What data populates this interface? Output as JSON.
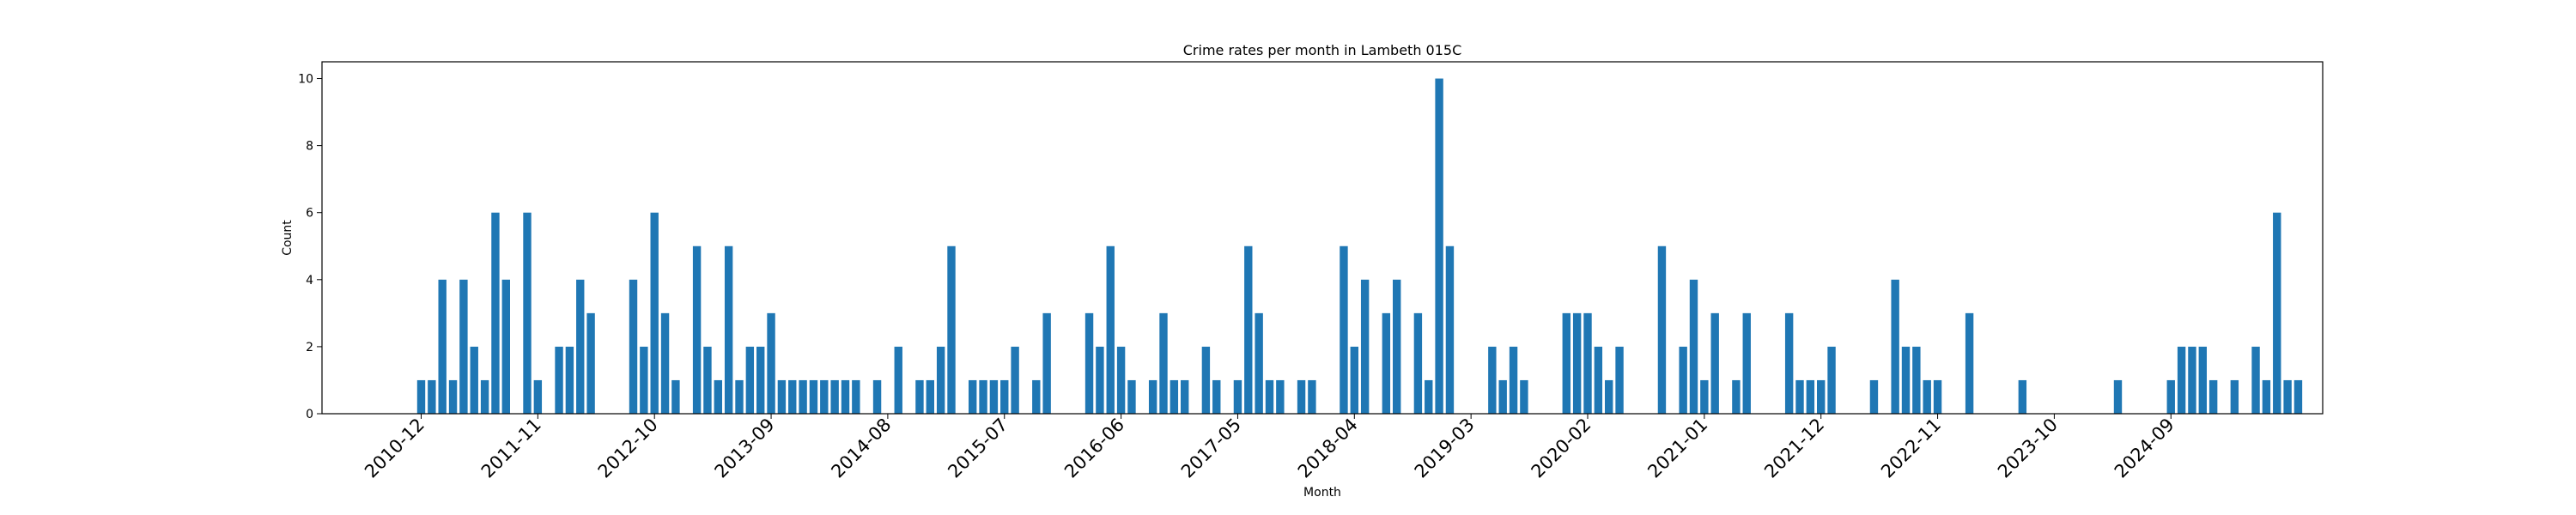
{
  "chart_data": {
    "type": "bar",
    "title": "Crime rates per month in Lambeth 015C",
    "xlabel": "Month",
    "ylabel": "Count",
    "ylim": [
      0,
      10.5
    ],
    "y_ticks": [
      0,
      2,
      4,
      6,
      8,
      10
    ],
    "x_tick_labels": [
      "2010-12",
      "2011-11",
      "2012-10",
      "2013-09",
      "2014-08",
      "2015-07",
      "2016-06",
      "2017-05",
      "2018-04",
      "2019-03",
      "2020-02",
      "2021-01",
      "2021-12",
      "2022-11",
      "2023-10",
      "2024-09"
    ],
    "start_month": "2010-12",
    "bar_color": "#1f77b4",
    "values": [
      1,
      1,
      4,
      1,
      4,
      2,
      1,
      6,
      4,
      0,
      6,
      1,
      0,
      2,
      2,
      4,
      3,
      0,
      0,
      0,
      4,
      2,
      6,
      3,
      1,
      0,
      5,
      2,
      1,
      5,
      1,
      2,
      2,
      3,
      1,
      1,
      1,
      1,
      1,
      1,
      1,
      1,
      0,
      1,
      0,
      2,
      0,
      1,
      1,
      2,
      5,
      0,
      1,
      1,
      1,
      1,
      2,
      0,
      1,
      3,
      0,
      0,
      0,
      3,
      2,
      5,
      2,
      1,
      0,
      1,
      3,
      1,
      1,
      0,
      2,
      1,
      0,
      1,
      5,
      3,
      1,
      1,
      0,
      1,
      1,
      0,
      0,
      5,
      2,
      4,
      0,
      3,
      4,
      0,
      3,
      1,
      10,
      5,
      0,
      0,
      0,
      2,
      1,
      2,
      1,
      0,
      0,
      0,
      3,
      3,
      3,
      2,
      1,
      2,
      0,
      0,
      0,
      5,
      0,
      2,
      4,
      1,
      3,
      0,
      1,
      3,
      0,
      0,
      0,
      3,
      1,
      1,
      1,
      2,
      0,
      0,
      0,
      1,
      0,
      4,
      2,
      2,
      1,
      1,
      0,
      0,
      3,
      0,
      0,
      0,
      0,
      1,
      0,
      0,
      0,
      0,
      0,
      0,
      0,
      0,
      1,
      0,
      0,
      0,
      0,
      1,
      2,
      2,
      2,
      1,
      0,
      1,
      0,
      2,
      1,
      6,
      1,
      1
    ]
  }
}
